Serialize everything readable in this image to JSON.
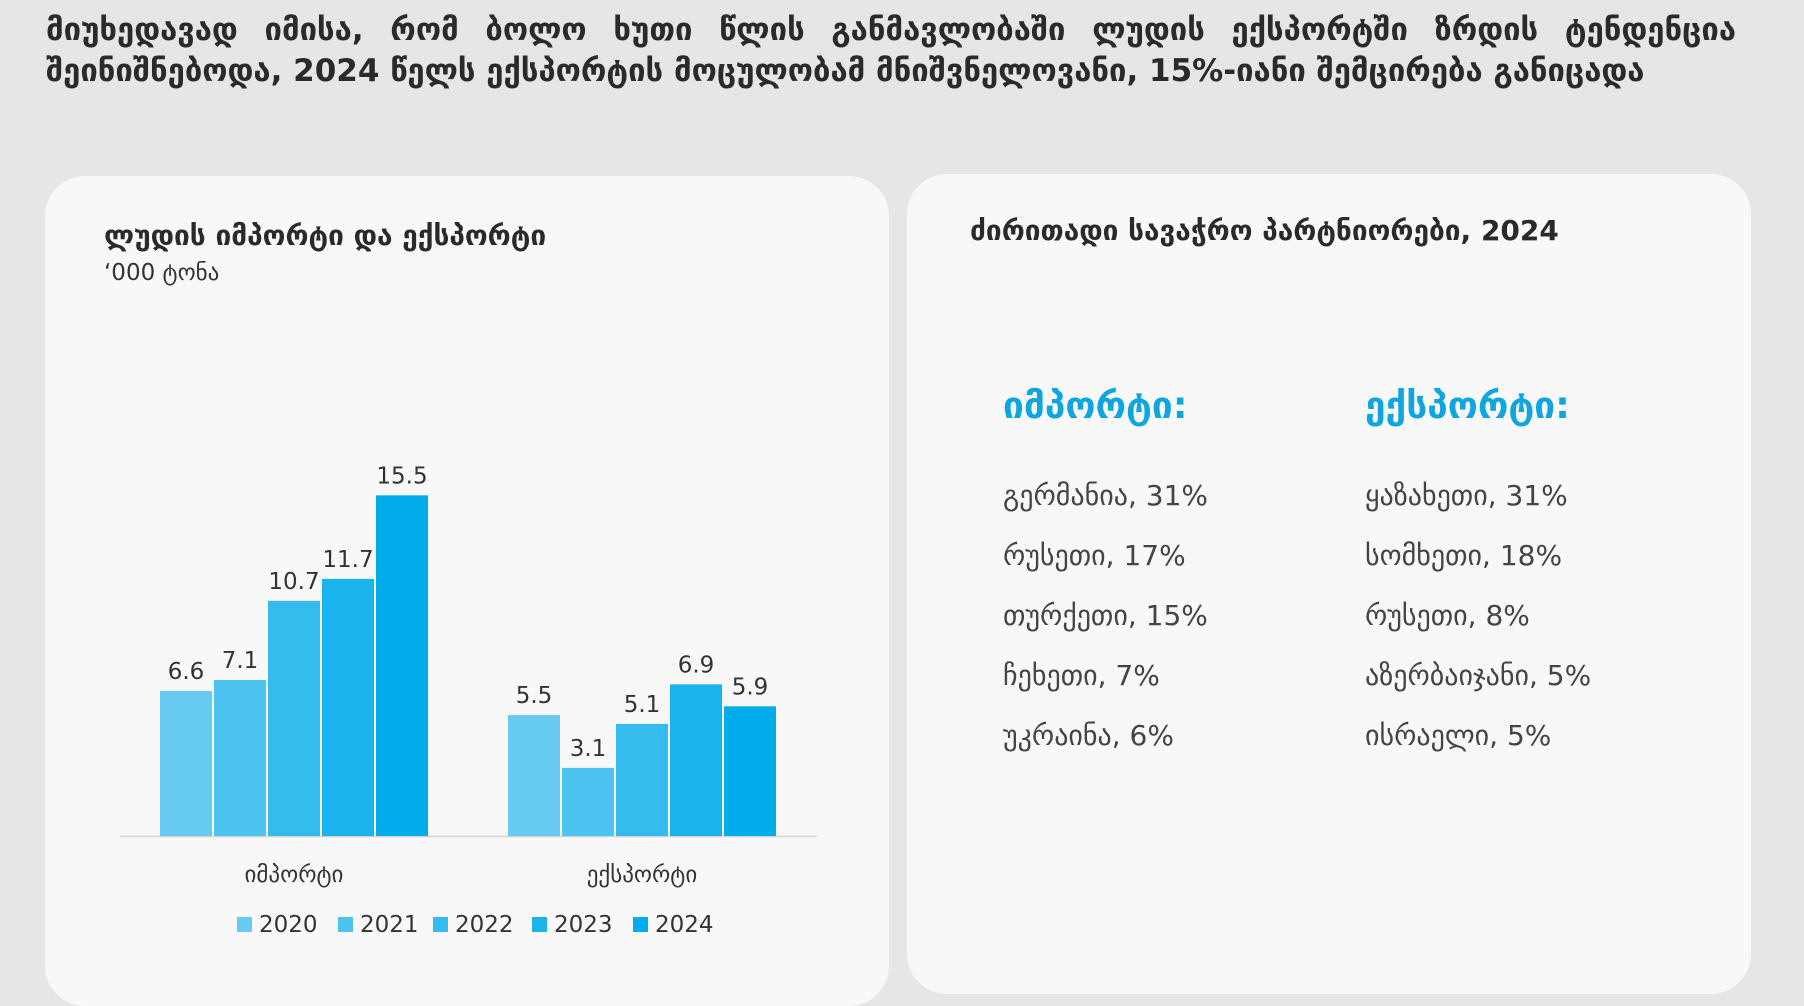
{
  "headline": "მიუხედავად იმისა, რომ ბოლო ხუთი წლის განმავლობაში ლუდის ექსპორტში ზრდის ტენდენცია შეინიშნებოდა, 2024 წელს ექსპორტის მოცულობამ მნიშვნელოვანი, 15%-იანი შემცირება განიცადა",
  "chart_data": {
    "type": "bar",
    "title": "ლუდის იმპორტი და ექსპორტი",
    "subtitle": "‘000 ტონა",
    "categories": [
      "იმპორტი",
      "ექსპორტი"
    ],
    "series": [
      {
        "name": "2020",
        "values": [
          6.6,
          5.5
        ],
        "color": "#67caf1"
      },
      {
        "name": "2021",
        "values": [
          7.1,
          3.1
        ],
        "color": "#4dc3ef"
      },
      {
        "name": "2022",
        "values": [
          10.7,
          5.1
        ],
        "color": "#34bcee"
      },
      {
        "name": "2023",
        "values": [
          11.7,
          6.9
        ],
        "color": "#1bb3ec"
      },
      {
        "name": "2024",
        "values": [
          15.5,
          5.9
        ],
        "color": "#03acea"
      }
    ],
    "ylim": [
      0,
      18.2
    ],
    "grid": false,
    "legend": "bottom"
  },
  "partners": {
    "title": "ძირითადი სავაჭრო პარტნიორები, 2024",
    "import_heading": "იმპორტი:",
    "import_items": [
      "გერმანია, 31%",
      "რუსეთი, 17%",
      "თურქეთი, 15%",
      "ჩეხეთი, 7%",
      "უკრაინა, 6%"
    ],
    "export_heading": "ექსპორტი:",
    "export_items": [
      "ყაზახეთი, 31%",
      "სომხეთი, 18%",
      "რუსეთი, 8%",
      "აზერბაიჯანი, 5%",
      "ისრაელი, 5%"
    ],
    "accent_color": "#0ea5e0"
  }
}
